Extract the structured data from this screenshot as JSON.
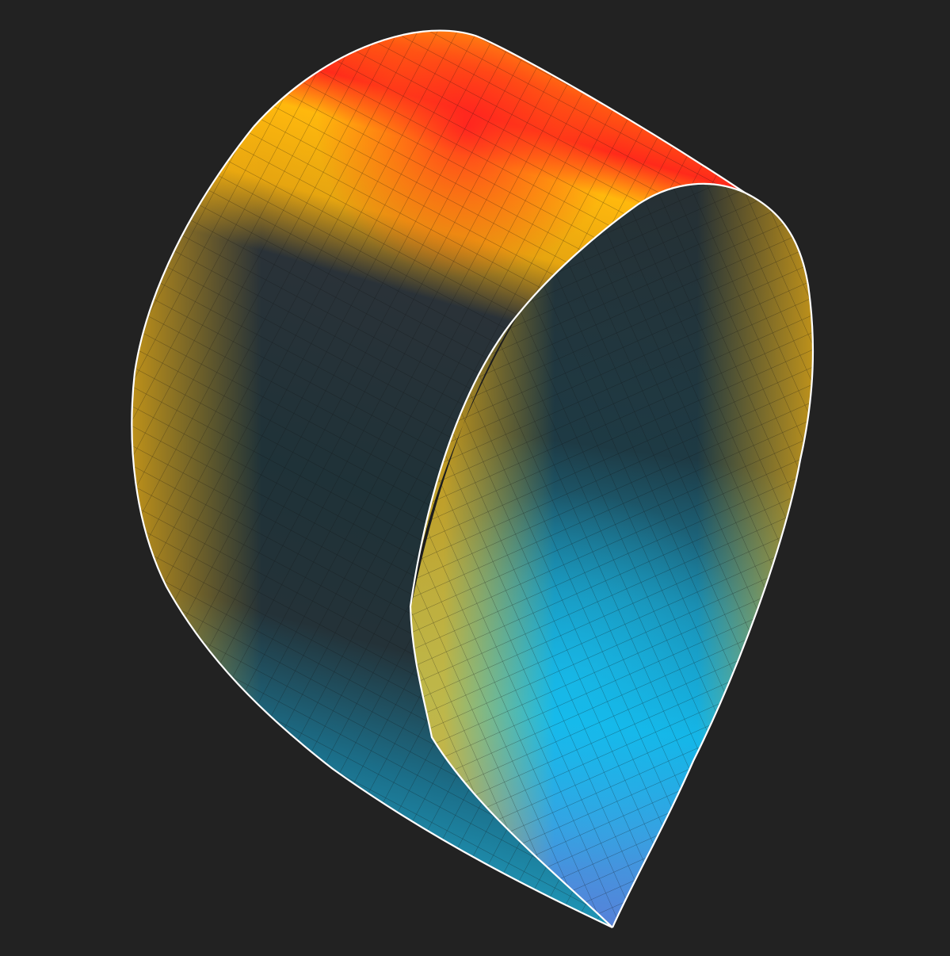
{
  "scene": {
    "subject": "curved-ribbon-surface",
    "background_color": "#222222",
    "edge_color": "#ffffff",
    "mesh_line_color": "#1a1a1a",
    "palette": {
      "hot": "#ff2a1a",
      "warm": "#ffb80d",
      "neutral": "#1f3238",
      "cool": "#1ab0e0",
      "cold": "#5a7fd8"
    }
  }
}
